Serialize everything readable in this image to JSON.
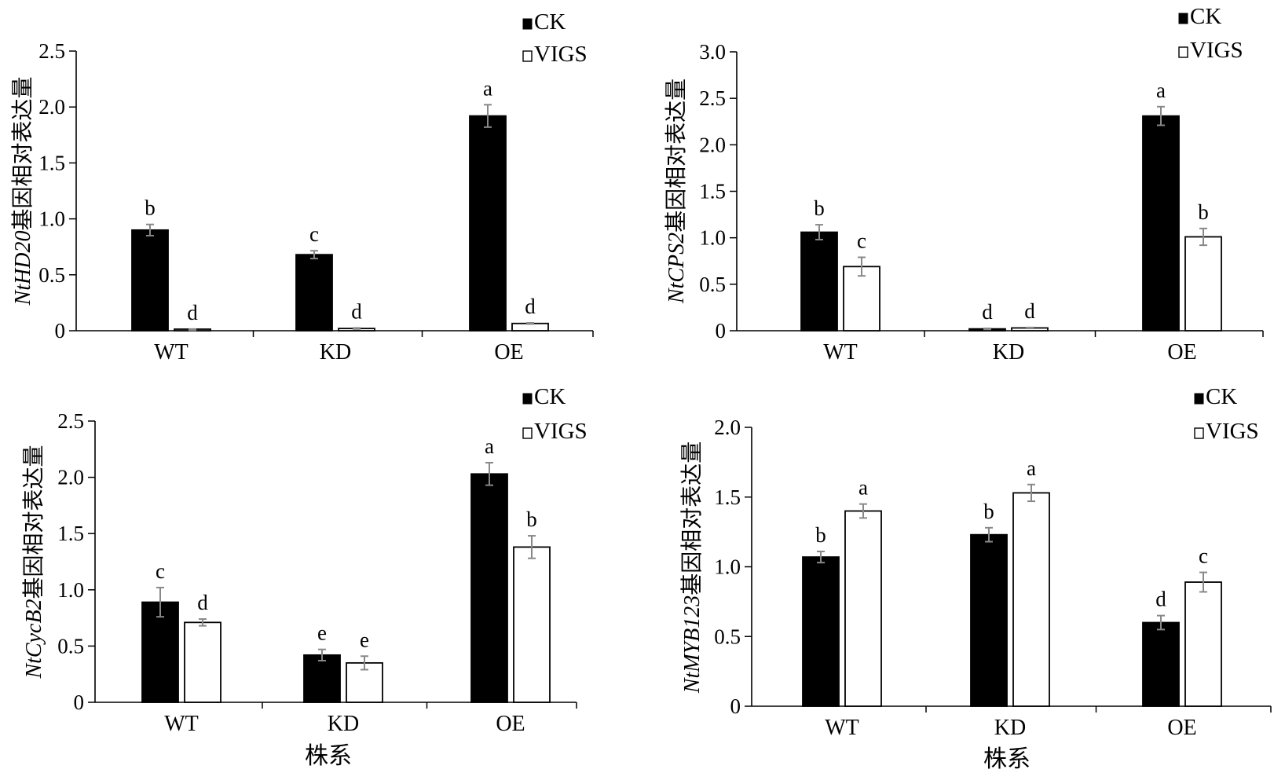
{
  "legend": {
    "ck": "CK",
    "vigs": "VIGS"
  },
  "x_title": "株系",
  "chart_data": [
    {
      "type": "bar",
      "ylabel_gene": "NtHD20",
      "ylabel_suffix": "基因相对表达量",
      "ylim": [
        0,
        2.5
      ],
      "yticks": [
        "0",
        "0.5",
        "1.0",
        "1.5",
        "2.0",
        "2.5"
      ],
      "categories": [
        "WT",
        "KD",
        "OE"
      ],
      "series": [
        {
          "name": "CK",
          "values": [
            0.9,
            0.68,
            1.92
          ],
          "errors": [
            0.05,
            0.035,
            0.1
          ],
          "letters": [
            "b",
            "c",
            "a"
          ]
        },
        {
          "name": "VIGS",
          "values": [
            0.01,
            0.02,
            0.065
          ],
          "errors": [
            0.005,
            0.005,
            0.005
          ],
          "letters": [
            "d",
            "d",
            "d"
          ]
        }
      ]
    },
    {
      "type": "bar",
      "ylabel_gene": "NtCPS2",
      "ylabel_suffix": "基因相对表达量",
      "ylim": [
        0,
        3.0
      ],
      "yticks": [
        "0",
        "0.5",
        "1.0",
        "1.5",
        "2.0",
        "2.5",
        "3.0"
      ],
      "categories": [
        "WT",
        "KD",
        "OE"
      ],
      "series": [
        {
          "name": "CK",
          "values": [
            1.06,
            0.02,
            2.31
          ],
          "errors": [
            0.08,
            0.005,
            0.1
          ],
          "letters": [
            "b",
            "d",
            "a"
          ]
        },
        {
          "name": "VIGS",
          "values": [
            0.69,
            0.03,
            1.01
          ],
          "errors": [
            0.1,
            0.005,
            0.09
          ],
          "letters": [
            "c",
            "d",
            "b"
          ]
        }
      ]
    },
    {
      "type": "bar",
      "ylabel_gene": "NtCycB2",
      "ylabel_suffix": "基因相对表达量",
      "ylim": [
        0,
        2.5
      ],
      "yticks": [
        "0",
        "0.5",
        "1.0",
        "1.5",
        "2.0",
        "2.5"
      ],
      "categories": [
        "WT",
        "KD",
        "OE"
      ],
      "series": [
        {
          "name": "CK",
          "values": [
            0.89,
            0.42,
            2.03
          ],
          "errors": [
            0.13,
            0.05,
            0.1
          ],
          "letters": [
            "c",
            "e",
            "a"
          ]
        },
        {
          "name": "VIGS",
          "values": [
            0.71,
            0.35,
            1.38
          ],
          "errors": [
            0.03,
            0.06,
            0.1
          ],
          "letters": [
            "d",
            "e",
            "b"
          ]
        }
      ]
    },
    {
      "type": "bar",
      "ylabel_gene": "NtMYB123",
      "ylabel_suffix": "基因相对表达量",
      "ylim": [
        0,
        2.0
      ],
      "yticks": [
        "0",
        "0.5",
        "1.0",
        "1.5",
        "2.0"
      ],
      "categories": [
        "WT",
        "KD",
        "OE"
      ],
      "series": [
        {
          "name": "CK",
          "values": [
            1.07,
            1.23,
            0.6
          ],
          "errors": [
            0.04,
            0.05,
            0.05
          ],
          "letters": [
            "b",
            "b",
            "d"
          ]
        },
        {
          "name": "VIGS",
          "values": [
            1.4,
            1.53,
            0.89
          ],
          "errors": [
            0.05,
            0.06,
            0.07
          ],
          "letters": [
            "a",
            "a",
            "c"
          ]
        }
      ]
    }
  ]
}
